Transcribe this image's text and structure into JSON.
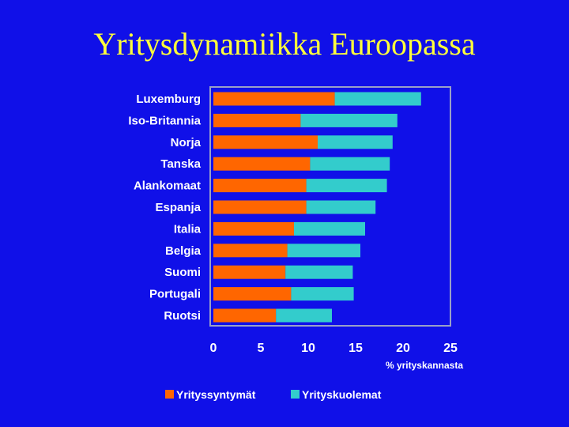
{
  "slide": {
    "title": "Yritysdynamiikka Euroopassa"
  },
  "chart_data": {
    "type": "bar",
    "orientation": "horizontal",
    "stacked": true,
    "categories": [
      "Luxemburg",
      "Iso-Britannia",
      "Norja",
      "Tanska",
      "Alankomaat",
      "Espanja",
      "Italia",
      "Belgia",
      "Suomi",
      "Portugali",
      "Ruotsi"
    ],
    "series": [
      {
        "name": "Yrityssyntymät",
        "color": "#ff6600",
        "values": [
          12.8,
          9.2,
          11.0,
          10.2,
          9.8,
          9.8,
          8.5,
          7.8,
          7.6,
          8.2,
          6.6
        ]
      },
      {
        "name": "Yrityskuolemat",
        "color": "#33cccc",
        "values": [
          9.1,
          10.2,
          7.9,
          8.4,
          8.5,
          7.3,
          7.5,
          7.7,
          7.1,
          6.6,
          5.9
        ]
      }
    ],
    "xlim": [
      0,
      25
    ],
    "xticks": [
      0,
      5,
      10,
      15,
      20,
      25
    ],
    "xlabel": "% yrityskannasta",
    "grid": false,
    "legend": "bottom"
  }
}
